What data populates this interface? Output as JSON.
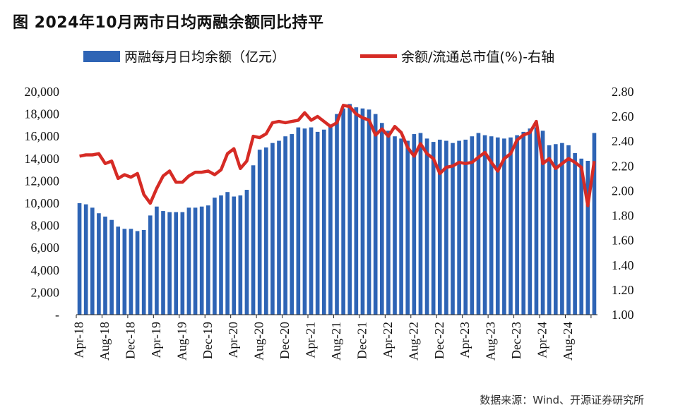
{
  "title": "图  2024年10月两市日均两融余额同比持平",
  "source": "数据来源：Wind、开源证券研究所",
  "chart_data": {
    "type": "bar+line",
    "title": "图  2024年10月两市日均两融余额同比持平",
    "legend": [
      "两融每月日均余额（亿元）",
      "余额/流通总市值(%)-右轴"
    ],
    "colors": {
      "bar": "#2e64b5",
      "line": "#d62b25"
    },
    "left_axis": {
      "min": 0,
      "max": 20000,
      "ticks": [
        "-",
        "2,000",
        "4,000",
        "6,000",
        "8,000",
        "10,000",
        "12,000",
        "14,000",
        "16,000",
        "18,000",
        "20,000"
      ]
    },
    "right_axis": {
      "min": 1.0,
      "max": 2.8,
      "ticks": [
        "1.00",
        "1.20",
        "1.40",
        "1.60",
        "1.80",
        "2.00",
        "2.20",
        "2.40",
        "2.60",
        "2.80"
      ]
    },
    "x_tick_labels": [
      "Apr-18",
      "Aug-18",
      "Dec-18",
      "Apr-19",
      "Aug-19",
      "Dec-19",
      "Apr-20",
      "Aug-20",
      "Dec-20",
      "Apr-21",
      "Aug-21",
      "Dec-21",
      "Apr-22",
      "Aug-22",
      "Dec-22",
      "Apr-23",
      "Aug-23",
      "Dec-23",
      "Apr-24",
      "Aug-24"
    ],
    "series": [
      {
        "name": "两融每月日均余额（亿元）",
        "type": "bar",
        "axis": "left",
        "values": [
          10000,
          9900,
          9600,
          9100,
          8800,
          8500,
          7900,
          7700,
          7700,
          7500,
          7600,
          8900,
          9700,
          9300,
          9200,
          9200,
          9200,
          9600,
          9600,
          9700,
          9800,
          10500,
          10700,
          11000,
          10600,
          10700,
          11200,
          13400,
          14800,
          15000,
          15400,
          15600,
          16000,
          16200,
          16800,
          16700,
          16800,
          16400,
          16600,
          17000,
          18000,
          18500,
          18900,
          18600,
          18500,
          18400,
          18000,
          17200,
          16500,
          16000,
          15800,
          15600,
          16200,
          16300,
          15800,
          15500,
          15700,
          15600,
          15400,
          15600,
          15700,
          16000,
          16300,
          16100,
          16000,
          15900,
          15800,
          15900,
          16100,
          16400,
          16700,
          16800,
          16500,
          15200,
          15300,
          15400,
          15200,
          14500,
          14000,
          13800,
          16300
        ]
      },
      {
        "name": "余额/流通总市值(%)-右轴",
        "type": "line",
        "axis": "right",
        "values": [
          2.28,
          2.29,
          2.29,
          2.3,
          2.22,
          2.24,
          2.1,
          2.13,
          2.11,
          2.14,
          1.97,
          1.9,
          2.02,
          2.12,
          2.16,
          2.07,
          2.07,
          2.12,
          2.15,
          2.15,
          2.16,
          2.13,
          2.17,
          2.3,
          2.34,
          2.18,
          2.24,
          2.44,
          2.43,
          2.46,
          2.55,
          2.56,
          2.55,
          2.56,
          2.57,
          2.63,
          2.57,
          2.6,
          2.56,
          2.52,
          2.55,
          2.69,
          2.68,
          2.62,
          2.59,
          2.57,
          2.45,
          2.5,
          2.44,
          2.52,
          2.47,
          2.35,
          2.28,
          2.38,
          2.3,
          2.26,
          2.14,
          2.19,
          2.2,
          2.23,
          2.22,
          2.23,
          2.27,
          2.31,
          2.23,
          2.16,
          2.26,
          2.3,
          2.41,
          2.45,
          2.47,
          2.56,
          2.22,
          2.26,
          2.18,
          2.22,
          2.26,
          2.23,
          2.19,
          1.88,
          2.24
        ]
      }
    ]
  }
}
